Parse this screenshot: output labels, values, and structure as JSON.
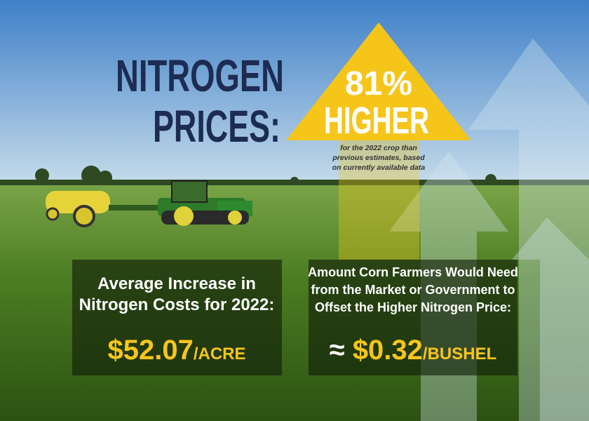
{
  "headline": {
    "lines": [
      "NITROGEN",
      "PRICES:"
    ]
  },
  "arrow": {
    "percent": "81%",
    "word": "HIGHER",
    "note_lines": [
      "for the 2022 crop than",
      "previous estimates, based",
      "on currently available data"
    ]
  },
  "boxes": [
    {
      "label_lines": [
        "Average Increase in",
        "Nitrogen Costs for 2022:"
      ],
      "prefix": null,
      "value": "$52.07",
      "unit": "/ACRE"
    },
    {
      "label_lines": [
        "Amount Corn Farmers Would Need",
        "from the Market or Government to",
        "Offset the Higher Nitrogen Price:"
      ],
      "prefix": "≈",
      "value": "$0.32",
      "unit": "/BUSHEL"
    }
  ]
}
